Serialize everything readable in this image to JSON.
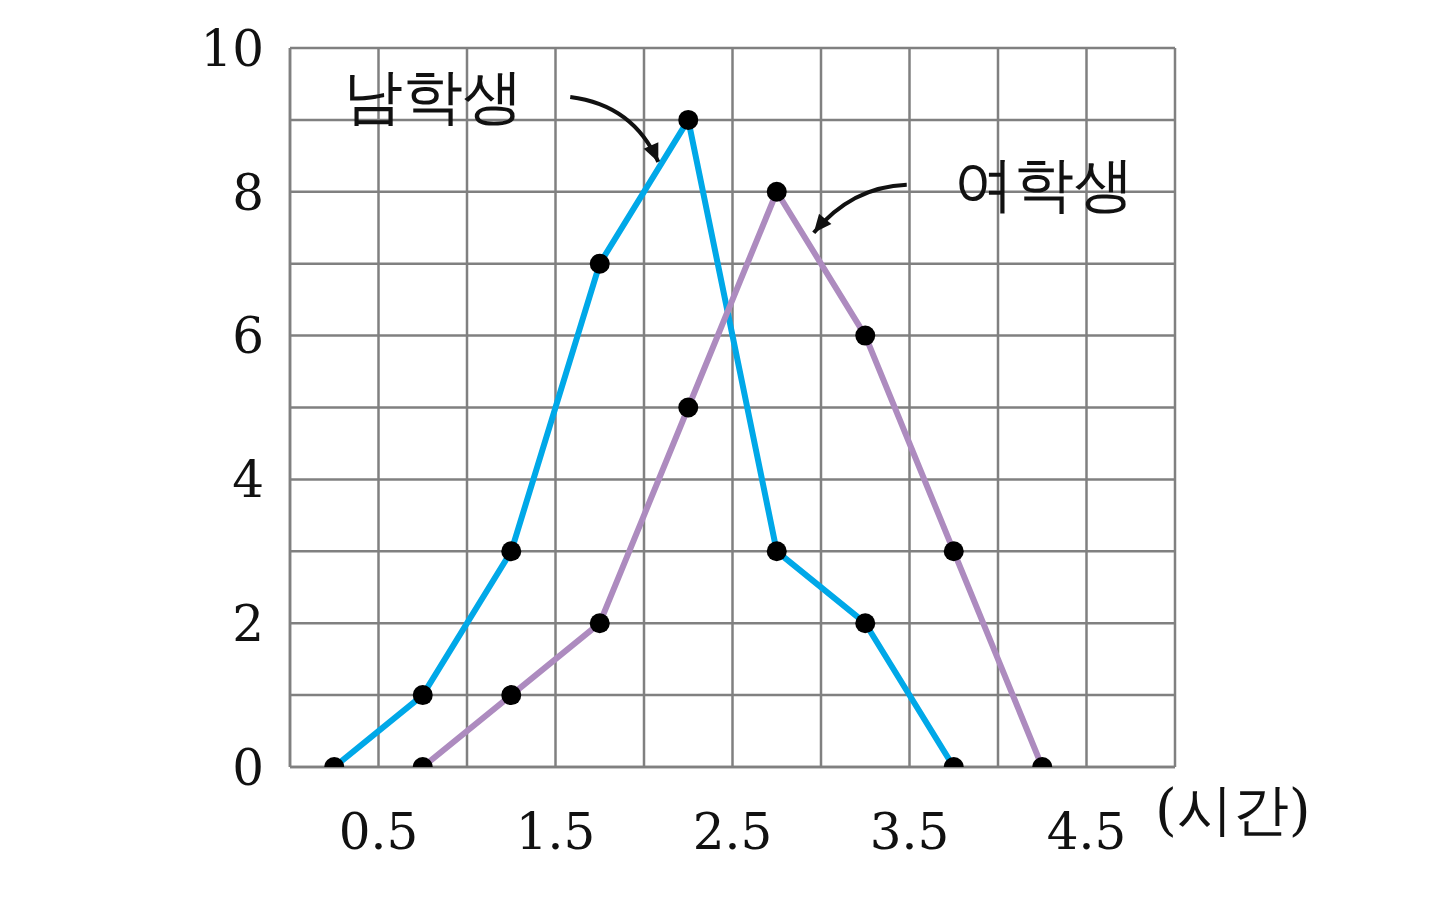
{
  "chart_data": {
    "type": "line",
    "xlabel": "(시간)",
    "series": [
      {
        "name": "남학생",
        "color": "#00a8e8",
        "x": [
          0.25,
          0.75,
          1.25,
          1.75,
          2.25,
          2.75,
          3.25,
          3.75
        ],
        "values": [
          0,
          1,
          3,
          7,
          9,
          3,
          2,
          0
        ]
      },
      {
        "name": "여학생",
        "color": "#ad8bbf",
        "x": [
          0.75,
          1.25,
          1.75,
          2.25,
          2.75,
          3.25,
          3.75,
          4.25
        ],
        "values": [
          0,
          1,
          2,
          5,
          8,
          6,
          3,
          0
        ]
      }
    ],
    "xlim": [
      0,
      5
    ],
    "xticks": [
      {
        "value": 0,
        "label": null
      },
      0.5,
      {
        "value": 1,
        "label": null
      },
      1.5,
      {
        "value": 2,
        "label": null
      },
      2.5,
      {
        "value": 3,
        "label": null
      },
      3.5,
      {
        "value": 4,
        "label": null
      },
      4.5,
      {
        "value": 5,
        "label": null
      }
    ],
    "ylim": [
      0,
      10
    ],
    "yticks": [
      0,
      {
        "value": 1,
        "label": null
      },
      2,
      {
        "value": 3,
        "label": null
      },
      4,
      {
        "value": 5,
        "label": null
      },
      6,
      {
        "value": 7,
        "label": null
      },
      8,
      {
        "value": 9,
        "label": null
      },
      10
    ],
    "grid": true,
    "legend": false,
    "marker": "circle",
    "line_style": "solid"
  }
}
